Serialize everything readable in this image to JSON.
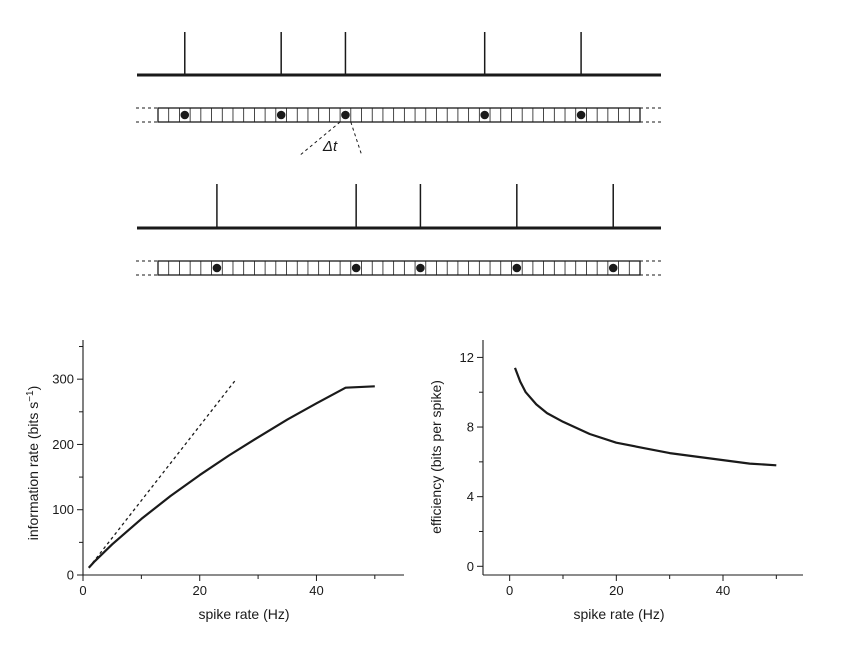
{
  "raster_diagram": {
    "delta_label": "Δt",
    "rows": [
      {
        "spike_bins": [
          2,
          11,
          17,
          30,
          39
        ]
      },
      {
        "spike_bins": [
          5,
          18,
          24,
          33,
          42
        ]
      }
    ]
  },
  "chart_data": [
    {
      "type": "line",
      "xlabel": "spike rate (Hz)",
      "ylabel": "information rate (bits s",
      "ylabel_superscript": "−1",
      "ylabel_close": ")",
      "xlim": [
        0,
        55
      ],
      "ylim": [
        0,
        360
      ],
      "xticks": [
        0,
        20,
        40
      ],
      "yticks": [
        0,
        100,
        200,
        300
      ],
      "series": [
        {
          "style": "solid",
          "x": [
            1,
            2,
            5,
            10,
            15,
            20,
            25,
            30,
            35,
            40,
            45,
            50
          ],
          "y": [
            11,
            21,
            47,
            86,
            121,
            153,
            183,
            211,
            238,
            263,
            287,
            289
          ]
        },
        {
          "style": "dashed",
          "x": [
            1,
            26
          ],
          "y": [
            11,
            297
          ]
        }
      ]
    },
    {
      "type": "line",
      "xlabel": "spike rate (Hz)",
      "ylabel": "efficiency (bits per spike)",
      "xlim": [
        -5,
        55
      ],
      "ylim": [
        -0.5,
        13
      ],
      "xticks": [
        0,
        20,
        40
      ],
      "yticks": [
        0,
        4,
        8,
        12
      ],
      "series": [
        {
          "style": "solid",
          "x": [
            1,
            2,
            3,
            5,
            7,
            10,
            15,
            20,
            25,
            30,
            35,
            40,
            45,
            50
          ],
          "y": [
            11.4,
            10.6,
            10.0,
            9.3,
            8.8,
            8.3,
            7.6,
            7.1,
            6.8,
            6.5,
            6.3,
            6.1,
            5.9,
            5.8
          ]
        }
      ]
    }
  ]
}
